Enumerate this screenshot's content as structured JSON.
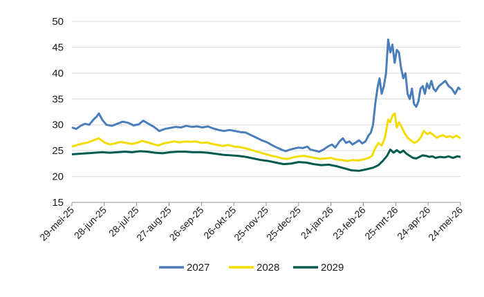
{
  "chart_data": {
    "type": "line",
    "title": "",
    "xlabel": "",
    "ylabel": "",
    "ylim": [
      15,
      50
    ],
    "y_ticks": [
      "15",
      "20",
      "25",
      "30",
      "35",
      "40",
      "45",
      "50"
    ],
    "grid": "horizontal",
    "legend_position": "bottom",
    "x_range": [
      "2025-05-29",
      "2026-05-24"
    ],
    "x_tick_labels": [
      {
        "date": "2025-05-29",
        "label": "29-mei-25"
      },
      {
        "date": "2025-06-28",
        "label": "28-jun-25"
      },
      {
        "date": "2025-07-28",
        "label": "28-jul-25"
      },
      {
        "date": "2025-08-27",
        "label": "27-aug-25"
      },
      {
        "date": "2025-09-26",
        "label": "26-sep-25"
      },
      {
        "date": "2025-10-26",
        "label": "26-okt-25"
      },
      {
        "date": "2025-11-25",
        "label": "25-nov-25"
      },
      {
        "date": "2025-12-25",
        "label": "25-dec-25"
      },
      {
        "date": "2026-01-24",
        "label": "24-jan-26"
      },
      {
        "date": "2026-02-23",
        "label": "23-feb-26"
      },
      {
        "date": "2026-03-25",
        "label": "25-mrt-26"
      },
      {
        "date": "2026-04-24",
        "label": "24-apr-26"
      },
      {
        "date": "2026-05-24",
        "label": "24-mei-26"
      }
    ],
    "series": [
      {
        "name": "2027",
        "color": "#4a7ebb",
        "points": [
          [
            "2025-05-29",
            29.5
          ],
          [
            "2025-06-02",
            29.2
          ],
          [
            "2025-06-06",
            29.8
          ],
          [
            "2025-06-10",
            30.2
          ],
          [
            "2025-06-14",
            30.0
          ],
          [
            "2025-06-18",
            31.0
          ],
          [
            "2025-06-21",
            31.6
          ],
          [
            "2025-06-23",
            32.2
          ],
          [
            "2025-06-26",
            31.0
          ],
          [
            "2025-06-30",
            30.0
          ],
          [
            "2025-07-05",
            29.8
          ],
          [
            "2025-07-10",
            30.2
          ],
          [
            "2025-07-15",
            30.6
          ],
          [
            "2025-07-20",
            30.4
          ],
          [
            "2025-07-25",
            29.9
          ],
          [
            "2025-07-30",
            30.1
          ],
          [
            "2025-08-03",
            30.8
          ],
          [
            "2025-08-08",
            30.2
          ],
          [
            "2025-08-13",
            29.6
          ],
          [
            "2025-08-18",
            28.8
          ],
          [
            "2025-08-23",
            29.2
          ],
          [
            "2025-08-28",
            29.4
          ],
          [
            "2025-09-02",
            29.6
          ],
          [
            "2025-09-07",
            29.5
          ],
          [
            "2025-09-12",
            29.8
          ],
          [
            "2025-09-17",
            29.6
          ],
          [
            "2025-09-22",
            29.7
          ],
          [
            "2025-09-27",
            29.5
          ],
          [
            "2025-10-02",
            29.7
          ],
          [
            "2025-10-07",
            29.3
          ],
          [
            "2025-10-12",
            29.0
          ],
          [
            "2025-10-17",
            28.8
          ],
          [
            "2025-10-22",
            29.0
          ],
          [
            "2025-10-27",
            28.8
          ],
          [
            "2025-11-01",
            28.6
          ],
          [
            "2025-11-06",
            28.5
          ],
          [
            "2025-11-11",
            28.0
          ],
          [
            "2025-11-16",
            27.5
          ],
          [
            "2025-11-21",
            27.0
          ],
          [
            "2025-11-26",
            26.6
          ],
          [
            "2025-12-01",
            26.0
          ],
          [
            "2025-12-05",
            25.6
          ],
          [
            "2025-12-09",
            25.2
          ],
          [
            "2025-12-13",
            24.9
          ],
          [
            "2025-12-17",
            25.2
          ],
          [
            "2025-12-21",
            25.4
          ],
          [
            "2025-12-25",
            25.6
          ],
          [
            "2025-12-29",
            25.5
          ],
          [
            "2026-01-02",
            25.8
          ],
          [
            "2026-01-05",
            25.2
          ],
          [
            "2026-01-09",
            25.0
          ],
          [
            "2026-01-13",
            24.8
          ],
          [
            "2026-01-17",
            25.2
          ],
          [
            "2026-01-21",
            25.8
          ],
          [
            "2026-01-25",
            26.2
          ],
          [
            "2026-01-28",
            25.6
          ],
          [
            "2026-02-01",
            26.8
          ],
          [
            "2026-02-04",
            27.4
          ],
          [
            "2026-02-07",
            26.5
          ],
          [
            "2026-02-10",
            26.8
          ],
          [
            "2026-02-13",
            26.2
          ],
          [
            "2026-02-16",
            26.6
          ],
          [
            "2026-02-19",
            27.0
          ],
          [
            "2026-02-22",
            26.4
          ],
          [
            "2026-02-25",
            26.8
          ],
          [
            "2026-02-28",
            28.0
          ],
          [
            "2026-03-02",
            28.5
          ],
          [
            "2026-03-04",
            30.0
          ],
          [
            "2026-03-06",
            34.0
          ],
          [
            "2026-03-08",
            37.0
          ],
          [
            "2026-03-10",
            39.0
          ],
          [
            "2026-03-12",
            36.0
          ],
          [
            "2026-03-14",
            37.5
          ],
          [
            "2026-03-16",
            40.0
          ],
          [
            "2026-03-18",
            46.5
          ],
          [
            "2026-03-20",
            44.0
          ],
          [
            "2026-03-22",
            45.5
          ],
          [
            "2026-03-24",
            42.0
          ],
          [
            "2026-03-26",
            44.5
          ],
          [
            "2026-03-28",
            44.0
          ],
          [
            "2026-03-30",
            41.0
          ],
          [
            "2026-04-01",
            39.0
          ],
          [
            "2026-04-03",
            40.0
          ],
          [
            "2026-04-05",
            36.0
          ],
          [
            "2026-04-07",
            35.0
          ],
          [
            "2026-04-09",
            37.0
          ],
          [
            "2026-04-11",
            34.0
          ],
          [
            "2026-04-13",
            33.5
          ],
          [
            "2026-04-15",
            34.5
          ],
          [
            "2026-04-17",
            37.0
          ],
          [
            "2026-04-19",
            37.5
          ],
          [
            "2026-04-21",
            36.0
          ],
          [
            "2026-04-23",
            38.0
          ],
          [
            "2026-04-25",
            37.0
          ],
          [
            "2026-04-27",
            38.5
          ],
          [
            "2026-04-29",
            37.0
          ],
          [
            "2026-05-01",
            36.5
          ],
          [
            "2026-05-04",
            37.5
          ],
          [
            "2026-05-07",
            38.0
          ],
          [
            "2026-05-10",
            38.5
          ],
          [
            "2026-05-13",
            37.5
          ],
          [
            "2026-05-16",
            37.0
          ],
          [
            "2026-05-19",
            36.0
          ],
          [
            "2026-05-22",
            37.2
          ],
          [
            "2026-05-24",
            36.8
          ]
        ]
      },
      {
        "name": "2028",
        "color": "#f5dc00",
        "points": [
          [
            "2025-05-29",
            25.8
          ],
          [
            "2025-06-03",
            26.1
          ],
          [
            "2025-06-08",
            26.4
          ],
          [
            "2025-06-13",
            26.6
          ],
          [
            "2025-06-18",
            27.0
          ],
          [
            "2025-06-23",
            27.4
          ],
          [
            "2025-06-28",
            26.6
          ],
          [
            "2025-07-03",
            26.2
          ],
          [
            "2025-07-08",
            26.4
          ],
          [
            "2025-07-13",
            26.7
          ],
          [
            "2025-07-18",
            26.5
          ],
          [
            "2025-07-23",
            26.3
          ],
          [
            "2025-07-28",
            26.5
          ],
          [
            "2025-08-02",
            26.9
          ],
          [
            "2025-08-07",
            26.6
          ],
          [
            "2025-08-12",
            26.3
          ],
          [
            "2025-08-17",
            26.0
          ],
          [
            "2025-08-22",
            26.4
          ],
          [
            "2025-08-27",
            26.6
          ],
          [
            "2025-09-01",
            26.8
          ],
          [
            "2025-09-06",
            26.6
          ],
          [
            "2025-09-11",
            26.8
          ],
          [
            "2025-09-16",
            26.7
          ],
          [
            "2025-09-21",
            26.8
          ],
          [
            "2025-09-26",
            26.5
          ],
          [
            "2025-10-01",
            26.6
          ],
          [
            "2025-10-06",
            26.3
          ],
          [
            "2025-10-11",
            26.1
          ],
          [
            "2025-10-16",
            25.9
          ],
          [
            "2025-10-21",
            26.1
          ],
          [
            "2025-10-26",
            25.8
          ],
          [
            "2025-10-31",
            25.7
          ],
          [
            "2025-11-05",
            25.5
          ],
          [
            "2025-11-10",
            25.2
          ],
          [
            "2025-11-15",
            24.9
          ],
          [
            "2025-11-20",
            24.6
          ],
          [
            "2025-11-25",
            24.3
          ],
          [
            "2025-11-30",
            24.0
          ],
          [
            "2025-12-05",
            23.8
          ],
          [
            "2025-12-10",
            23.5
          ],
          [
            "2025-12-15",
            23.4
          ],
          [
            "2025-12-20",
            23.7
          ],
          [
            "2025-12-25",
            23.9
          ],
          [
            "2025-12-30",
            24.0
          ],
          [
            "2026-01-04",
            23.8
          ],
          [
            "2026-01-09",
            23.6
          ],
          [
            "2026-01-14",
            23.4
          ],
          [
            "2026-01-19",
            23.5
          ],
          [
            "2026-01-24",
            23.6
          ],
          [
            "2026-01-29",
            23.3
          ],
          [
            "2026-02-03",
            23.2
          ],
          [
            "2026-02-08",
            23.0
          ],
          [
            "2026-02-13",
            23.2
          ],
          [
            "2026-02-18",
            23.1
          ],
          [
            "2026-02-23",
            23.3
          ],
          [
            "2026-02-28",
            23.6
          ],
          [
            "2026-03-03",
            24.0
          ],
          [
            "2026-03-06",
            25.5
          ],
          [
            "2026-03-09",
            26.5
          ],
          [
            "2026-03-12",
            26.0
          ],
          [
            "2026-03-15",
            27.5
          ],
          [
            "2026-03-18",
            31.0
          ],
          [
            "2026-03-20",
            30.5
          ],
          [
            "2026-03-22",
            31.8
          ],
          [
            "2026-03-24",
            32.2
          ],
          [
            "2026-03-26",
            29.5
          ],
          [
            "2026-03-28",
            30.5
          ],
          [
            "2026-03-30",
            29.8
          ],
          [
            "2026-04-02",
            28.5
          ],
          [
            "2026-04-05",
            27.5
          ],
          [
            "2026-04-08",
            27.0
          ],
          [
            "2026-04-11",
            26.5
          ],
          [
            "2026-04-14",
            26.8
          ],
          [
            "2026-04-17",
            27.5
          ],
          [
            "2026-04-20",
            28.8
          ],
          [
            "2026-04-23",
            28.2
          ],
          [
            "2026-04-26",
            28.5
          ],
          [
            "2026-04-29",
            28.0
          ],
          [
            "2026-05-02",
            27.5
          ],
          [
            "2026-05-05",
            27.8
          ],
          [
            "2026-05-08",
            28.0
          ],
          [
            "2026-05-11",
            27.6
          ],
          [
            "2026-05-14",
            27.8
          ],
          [
            "2026-05-17",
            27.5
          ],
          [
            "2026-05-20",
            27.9
          ],
          [
            "2026-05-24",
            27.4
          ]
        ]
      },
      {
        "name": "2029",
        "color": "#005a50",
        "points": [
          [
            "2025-05-29",
            24.3
          ],
          [
            "2025-06-05",
            24.4
          ],
          [
            "2025-06-12",
            24.5
          ],
          [
            "2025-06-19",
            24.6
          ],
          [
            "2025-06-26",
            24.7
          ],
          [
            "2025-07-03",
            24.6
          ],
          [
            "2025-07-10",
            24.7
          ],
          [
            "2025-07-17",
            24.8
          ],
          [
            "2025-07-24",
            24.7
          ],
          [
            "2025-07-31",
            24.9
          ],
          [
            "2025-08-07",
            24.8
          ],
          [
            "2025-08-14",
            24.6
          ],
          [
            "2025-08-21",
            24.5
          ],
          [
            "2025-08-28",
            24.7
          ],
          [
            "2025-09-04",
            24.8
          ],
          [
            "2025-09-11",
            24.8
          ],
          [
            "2025-09-18",
            24.7
          ],
          [
            "2025-09-25",
            24.7
          ],
          [
            "2025-10-02",
            24.6
          ],
          [
            "2025-10-09",
            24.4
          ],
          [
            "2025-10-16",
            24.2
          ],
          [
            "2025-10-23",
            24.1
          ],
          [
            "2025-10-30",
            24.0
          ],
          [
            "2025-11-06",
            23.8
          ],
          [
            "2025-11-13",
            23.5
          ],
          [
            "2025-11-20",
            23.2
          ],
          [
            "2025-11-27",
            23.0
          ],
          [
            "2025-12-04",
            22.7
          ],
          [
            "2025-12-11",
            22.4
          ],
          [
            "2025-12-18",
            22.5
          ],
          [
            "2025-12-25",
            22.8
          ],
          [
            "2026-01-01",
            22.7
          ],
          [
            "2026-01-08",
            22.4
          ],
          [
            "2026-01-15",
            22.2
          ],
          [
            "2026-01-22",
            22.3
          ],
          [
            "2026-01-29",
            22.0
          ],
          [
            "2026-02-05",
            21.6
          ],
          [
            "2026-02-12",
            21.2
          ],
          [
            "2026-02-19",
            21.1
          ],
          [
            "2026-02-26",
            21.4
          ],
          [
            "2026-03-04",
            21.7
          ],
          [
            "2026-03-09",
            22.2
          ],
          [
            "2026-03-13",
            23.0
          ],
          [
            "2026-03-17",
            24.0
          ],
          [
            "2026-03-20",
            25.2
          ],
          [
            "2026-03-23",
            24.6
          ],
          [
            "2026-03-26",
            25.1
          ],
          [
            "2026-03-29",
            24.6
          ],
          [
            "2026-04-01",
            25.0
          ],
          [
            "2026-04-04",
            24.4
          ],
          [
            "2026-04-07",
            24.0
          ],
          [
            "2026-04-10",
            23.6
          ],
          [
            "2026-04-13",
            23.5
          ],
          [
            "2026-04-16",
            23.8
          ],
          [
            "2026-04-19",
            24.1
          ],
          [
            "2026-04-22",
            24.0
          ],
          [
            "2026-04-25",
            23.8
          ],
          [
            "2026-04-28",
            23.9
          ],
          [
            "2026-05-01",
            23.6
          ],
          [
            "2026-05-05",
            23.8
          ],
          [
            "2026-05-09",
            23.7
          ],
          [
            "2026-05-13",
            23.9
          ],
          [
            "2026-05-17",
            23.6
          ],
          [
            "2026-05-21",
            23.9
          ],
          [
            "2026-05-24",
            23.8
          ]
        ]
      }
    ]
  }
}
